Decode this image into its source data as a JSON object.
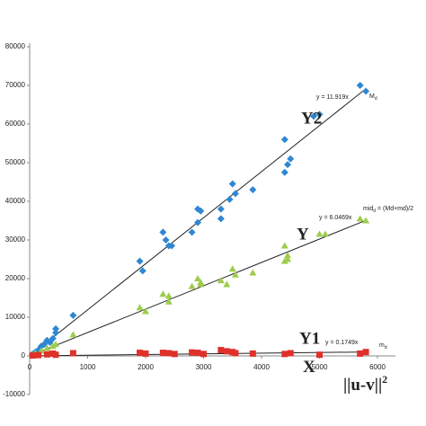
{
  "chart_data": {
    "type": "scatter",
    "xlim": [
      0,
      6000
    ],
    "xticks": [
      0,
      1000,
      2000,
      3000,
      4000,
      5000,
      6000
    ],
    "ylim": [
      -10000,
      80000
    ],
    "yticks": [
      -10000,
      0,
      10000,
      20000,
      30000,
      40000,
      50000,
      60000,
      70000,
      80000
    ],
    "series": [
      {
        "name": "Y2",
        "color": "#2f87d3",
        "marker": "diamond",
        "x": [
          50,
          100,
          150,
          200,
          250,
          300,
          350,
          400,
          450,
          450,
          750,
          1900,
          1950,
          2300,
          2350,
          2400,
          2450,
          2800,
          2900,
          2900,
          2950,
          3300,
          3300,
          3450,
          3500,
          3550,
          3850,
          4400,
          4400,
          4450,
          4500,
          4900,
          5000,
          5700,
          5800
        ],
        "values": [
          500,
          1000,
          1500,
          2500,
          3000,
          4000,
          3500,
          4500,
          6000,
          7000,
          10500,
          24500,
          22000,
          32000,
          30000,
          28500,
          28500,
          32000,
          34500,
          38000,
          37500,
          35500,
          38000,
          40500,
          44500,
          42000,
          43000,
          47500,
          56000,
          49500,
          51000,
          62000,
          62500,
          70000,
          68500
        ],
        "trend": {
          "label": "y = 11.919x",
          "slope": 11.919
        }
      },
      {
        "name": "Y",
        "color": "#9dcc4c",
        "marker": "triangle",
        "x": [
          50,
          100,
          200,
          300,
          400,
          450,
          750,
          1900,
          2000,
          2300,
          2400,
          2400,
          2800,
          2900,
          2950,
          2950,
          3300,
          3400,
          3500,
          3550,
          3850,
          4400,
          4400,
          4450,
          4450,
          5000,
          5100,
          5700,
          5800
        ],
        "values": [
          300,
          700,
          1300,
          2000,
          2500,
          3000,
          5500,
          12500,
          11500,
          16000,
          14000,
          15500,
          18000,
          20000,
          19000,
          18500,
          19500,
          18500,
          22500,
          21000,
          21500,
          28500,
          24500,
          26000,
          25000,
          31500,
          31500,
          35500,
          35000
        ],
        "trend": {
          "label": "y = 6.0469x",
          "slope": 6.0469
        }
      },
      {
        "name": "Y1",
        "color": "#e0302a",
        "marker": "square",
        "x": [
          50,
          150,
          300,
          400,
          450,
          750,
          1900,
          2000,
          2300,
          2400,
          2500,
          2800,
          2900,
          3000,
          3300,
          3400,
          3500,
          3550,
          3850,
          4400,
          4500,
          5000,
          5700,
          5800
        ],
        "values": [
          100,
          200,
          400,
          600,
          300,
          700,
          800,
          600,
          800,
          700,
          500,
          900,
          800,
          500,
          1500,
          1200,
          1000,
          700,
          600,
          500,
          700,
          300,
          600,
          1000
        ],
        "trend": {
          "label": "y = 0.1749x",
          "slope": 0.1749
        }
      }
    ],
    "annotations": [
      {
        "text": "M",
        "sub": "d"
      },
      {
        "text": "mid",
        "sub": "d",
        "tail": " = (Md+md)/2"
      },
      {
        "text": "m",
        "sub": "d"
      },
      {
        "text": "X"
      },
      {
        "text": "||u-v||",
        "sup": "2"
      }
    ]
  }
}
